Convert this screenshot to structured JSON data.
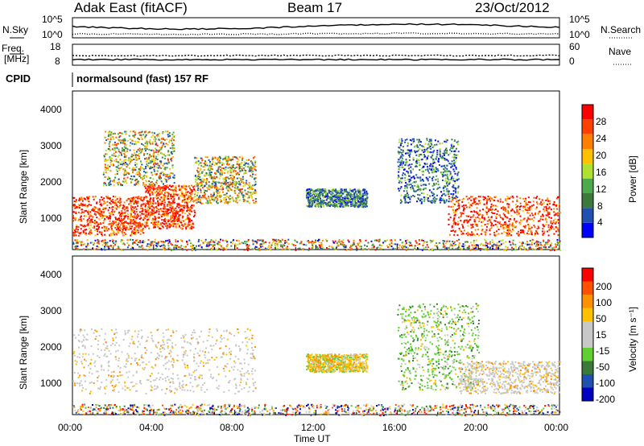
{
  "header": {
    "site": "Adak East (fitACF)",
    "beam": "Beam 17",
    "date": "23/Oct/2012"
  },
  "top_panels": {
    "nsky_label": "N.Sky",
    "nsky_ticks": [
      "10^5",
      "10^0"
    ],
    "nsearch_label": "N.Search",
    "nsearch_ticks": [
      "10^5",
      "10^0"
    ],
    "freq_label_1": "Freq.",
    "freq_label_2": "[MHz]",
    "freq_ticks": [
      "18",
      "8"
    ],
    "nave_label": "Nave",
    "nave_ticks": [
      "60",
      "0"
    ],
    "cpid_label": "CPID",
    "cpid_value": "normalsound (fast) 157 RF"
  },
  "x_axis": {
    "label": "Time UT",
    "ticks": [
      "00:00",
      "04:00",
      "08:00",
      "12:00",
      "16:00",
      "20:00",
      "00:00"
    ]
  },
  "colors": {
    "power_scale": [
      "#0000ff",
      "#2050b0",
      "#3c7a3c",
      "#4caa4c",
      "#b0e030",
      "#ffc000",
      "#ff8000",
      "#ff4000",
      "#ff0000"
    ],
    "velocity_scale": [
      "#ff0000",
      "#ff5000",
      "#ff9000",
      "#ffc000",
      "#c8c8c8",
      "#c8c8c8",
      "#60d030",
      "#3c7a3c",
      "#2050b0",
      "#0000c0"
    ]
  },
  "chart_data": [
    {
      "type": "heatmap",
      "name_hint": "power panel",
      "ylabel": "Slant Range [km]",
      "xlabel": "",
      "y_ticks": [
        "1000",
        "2000",
        "3000",
        "4000"
      ],
      "ylim": [
        200,
        4600
      ],
      "xlim_hours": [
        0,
        24
      ],
      "colorbar_label": "Power [dB]",
      "colorbar_ticks": [
        "4",
        "8",
        "12",
        "16",
        "20",
        "24",
        "28"
      ],
      "echo_regions": [
        {
          "t0": 0,
          "t1": 3.5,
          "r0": 600,
          "r1": 1700,
          "level": "high"
        },
        {
          "t0": 3.5,
          "t1": 6,
          "r0": 800,
          "r1": 2000,
          "level": "high"
        },
        {
          "t0": 6,
          "t1": 9,
          "r0": 1500,
          "r1": 2800,
          "level": "mid"
        },
        {
          "t0": 1.5,
          "t1": 5,
          "r0": 2000,
          "r1": 3500,
          "level": "mid"
        },
        {
          "t0": 11.5,
          "t1": 14.5,
          "r0": 1400,
          "r1": 1900,
          "level": "low"
        },
        {
          "t0": 16,
          "t1": 19,
          "r0": 1500,
          "r1": 3300,
          "level": "low"
        },
        {
          "t0": 18.5,
          "t1": 24,
          "r0": 600,
          "r1": 1700,
          "level": "high"
        },
        {
          "t0": 0,
          "t1": 24,
          "r0": 200,
          "r1": 500,
          "level": "mixed"
        }
      ]
    },
    {
      "type": "heatmap",
      "name_hint": "velocity panel",
      "ylabel": "Slant Range [km]",
      "xlabel": "Time UT",
      "y_ticks": [
        "1000",
        "2000",
        "3000",
        "4000"
      ],
      "ylim": [
        200,
        4600
      ],
      "xlim_hours": [
        0,
        24
      ],
      "colorbar_label": "Velocity [m s⁻¹]",
      "colorbar_ticks": [
        "200",
        "100",
        "50",
        "15",
        "-15",
        "-50",
        "-100",
        "-200"
      ],
      "echo_regions": [
        {
          "t0": 0,
          "t1": 9,
          "r0": 800,
          "r1": 2600,
          "level": "grey"
        },
        {
          "t0": 11.5,
          "t1": 14.5,
          "r0": 1400,
          "r1": 1900,
          "level": "orange"
        },
        {
          "t0": 16,
          "t1": 20,
          "r0": 900,
          "r1": 3300,
          "level": "green"
        },
        {
          "t0": 19,
          "t1": 24,
          "r0": 800,
          "r1": 1700,
          "level": "grey"
        },
        {
          "t0": 0,
          "t1": 24,
          "r0": 200,
          "r1": 500,
          "level": "mixed"
        }
      ]
    }
  ]
}
